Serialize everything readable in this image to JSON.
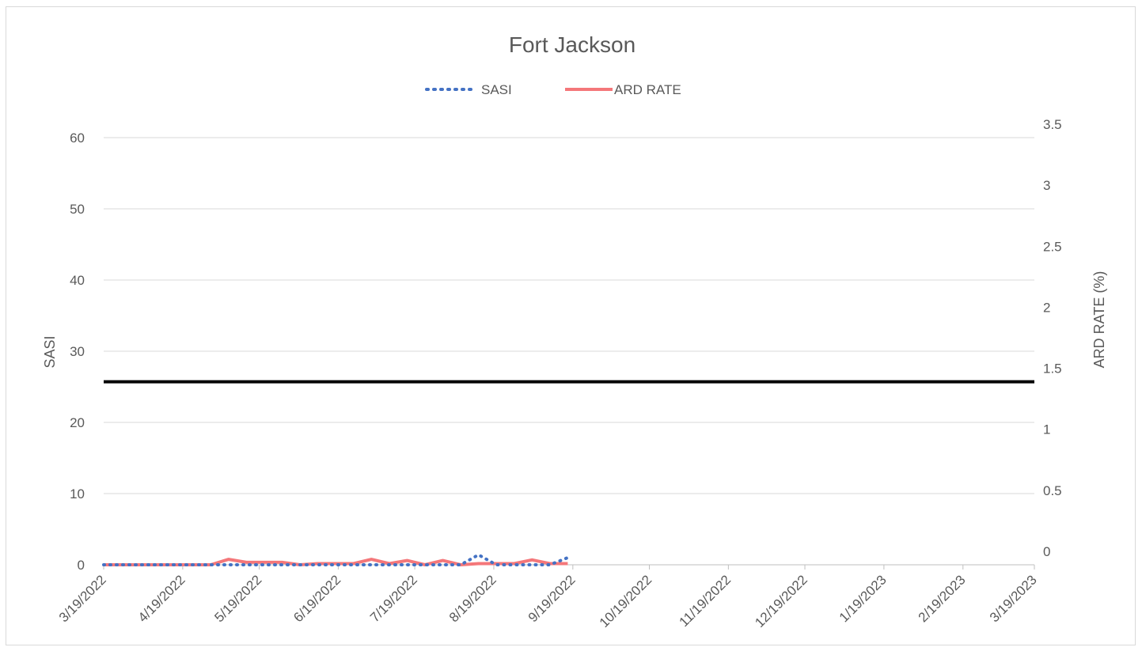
{
  "chart_data": {
    "type": "line",
    "title": "Fort Jackson",
    "legend": {
      "placement": "top",
      "entries": [
        "SASI",
        "ARD RATE"
      ]
    },
    "x_axis": {
      "type": "date",
      "ticks": [
        "3/19/2022",
        "4/19/2022",
        "5/19/2022",
        "6/19/2022",
        "7/19/2022",
        "8/19/2022",
        "9/19/2022",
        "10/19/2022",
        "11/19/2022",
        "12/19/2022",
        "1/19/2023",
        "2/19/2023",
        "3/19/2023"
      ],
      "range": [
        "2022-03-19",
        "2023-03-19"
      ]
    },
    "y_left": {
      "label": "SASI",
      "ylim": [
        0,
        60
      ],
      "ticks": [
        "0",
        "10",
        "20",
        "30",
        "40",
        "50",
        "60"
      ]
    },
    "y_right": {
      "label": "ARD RATE (%)",
      "ylim": [
        0,
        3.5
      ],
      "ticks": [
        "0",
        "0.5",
        "1",
        "1.5",
        "2",
        "2.5",
        "3",
        "3.5"
      ]
    },
    "grid": "horizontal",
    "threshold_line": {
      "axis": "right",
      "value": 1.5,
      "color": "#000000"
    },
    "series": [
      {
        "name": "SASI",
        "axis": "left",
        "style": "dotted",
        "color": "#4472C4",
        "x": [
          "2022-03-19",
          "2022-03-26",
          "2022-04-02",
          "2022-04-09",
          "2022-04-16",
          "2022-04-23",
          "2022-04-30",
          "2022-05-07",
          "2022-05-14",
          "2022-05-21",
          "2022-05-28",
          "2022-06-04",
          "2022-06-11",
          "2022-06-18",
          "2022-06-25",
          "2022-07-02",
          "2022-07-09",
          "2022-07-16",
          "2022-07-23",
          "2022-07-30",
          "2022-08-06",
          "2022-08-13",
          "2022-08-20",
          "2022-08-27",
          "2022-09-03",
          "2022-09-10",
          "2022-09-17"
        ],
        "y": [
          0,
          0,
          0,
          0,
          0,
          0,
          0,
          0,
          0,
          0,
          0,
          0,
          0,
          0,
          0,
          0,
          0,
          0,
          0,
          0,
          0,
          1.4,
          0,
          0,
          0,
          0,
          1
        ]
      },
      {
        "name": "ARD RATE",
        "axis": "right",
        "style": "solid",
        "color": "#F4777A",
        "x": [
          "2022-03-19",
          "2022-03-26",
          "2022-04-02",
          "2022-04-09",
          "2022-04-16",
          "2022-04-23",
          "2022-04-30",
          "2022-05-07",
          "2022-05-14",
          "2022-05-21",
          "2022-05-28",
          "2022-06-04",
          "2022-06-11",
          "2022-06-18",
          "2022-06-25",
          "2022-07-02",
          "2022-07-09",
          "2022-07-16",
          "2022-07-23",
          "2022-07-30",
          "2022-08-06",
          "2022-08-13",
          "2022-08-20",
          "2022-08-27",
          "2022-09-03",
          "2022-09-10",
          "2022-09-17"
        ],
        "y": [
          0,
          0,
          0,
          0,
          0,
          0,
          0,
          0.045,
          0.02,
          0.02,
          0.02,
          0,
          0.01,
          0.01,
          0.01,
          0.045,
          0.01,
          0.035,
          0,
          0.035,
          0,
          0.01,
          0.01,
          0.01,
          0.04,
          0.01,
          0.01
        ]
      }
    ]
  }
}
